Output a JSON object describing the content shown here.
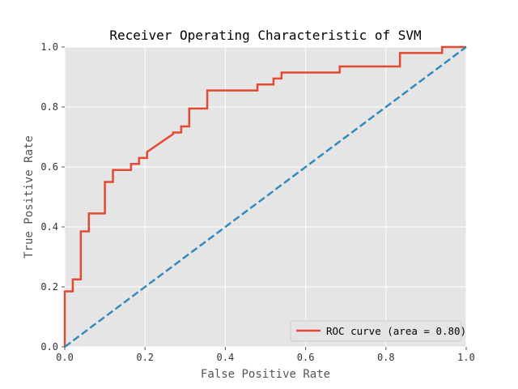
{
  "chart_data": {
    "type": "line",
    "title": "Receiver Operating Characteristic of SVM",
    "xlabel": "False Positive Rate",
    "ylabel": "True Positive Rate",
    "xlim": [
      0,
      1
    ],
    "ylim": [
      0,
      1
    ],
    "xticks": [
      "0.0",
      "0.2",
      "0.4",
      "0.6",
      "0.8",
      "1.0"
    ],
    "yticks": [
      "0.0",
      "0.2",
      "0.4",
      "0.6",
      "0.8",
      "1.0"
    ],
    "grid": true,
    "legend_position": "lower-right",
    "colors": {
      "background": "#e5e5e5",
      "grid": "#ffffff",
      "roc": "#e24a33",
      "diagonal": "#348abd",
      "text": "#333333"
    },
    "series": [
      {
        "name": "ROC curve (area = 0.80)",
        "style": "solid",
        "x": [
          0.0,
          0.0,
          0.02,
          0.02,
          0.04,
          0.04,
          0.06,
          0.06,
          0.1,
          0.1,
          0.12,
          0.12,
          0.165,
          0.165,
          0.185,
          0.185,
          0.205,
          0.205,
          0.27,
          0.27,
          0.29,
          0.29,
          0.31,
          0.31,
          0.355,
          0.355,
          0.48,
          0.48,
          0.52,
          0.52,
          0.54,
          0.54,
          0.685,
          0.685,
          0.835,
          0.835,
          0.94,
          0.94,
          1.0
        ],
        "y": [
          0.0,
          0.185,
          0.185,
          0.225,
          0.225,
          0.385,
          0.385,
          0.445,
          0.445,
          0.55,
          0.55,
          0.59,
          0.59,
          0.61,
          0.61,
          0.63,
          0.63,
          0.65,
          0.71,
          0.715,
          0.715,
          0.735,
          0.735,
          0.795,
          0.795,
          0.855,
          0.855,
          0.875,
          0.875,
          0.895,
          0.895,
          0.915,
          0.915,
          0.935,
          0.935,
          0.98,
          0.98,
          1.0,
          1.0
        ]
      },
      {
        "style": "dashed",
        "x": [
          0,
          1
        ],
        "y": [
          0,
          1
        ]
      }
    ]
  }
}
